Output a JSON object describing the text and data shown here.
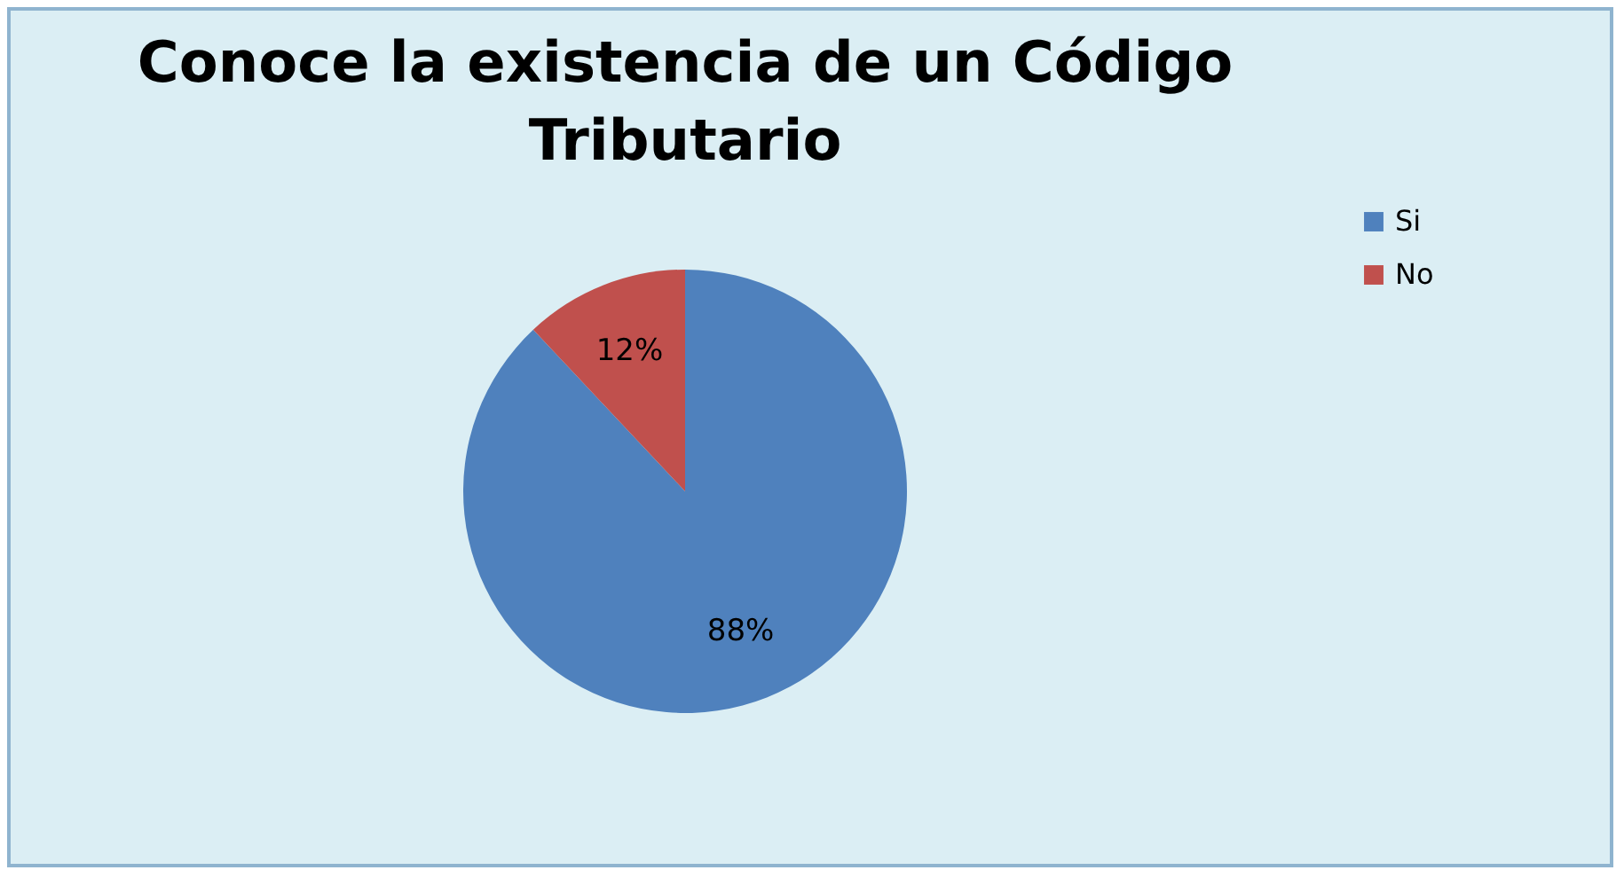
{
  "chart_data": {
    "type": "pie",
    "title": "Conoce la existencia de un Código Tributario",
    "categories": [
      "Si",
      "No"
    ],
    "values": [
      88,
      12
    ],
    "colors": [
      "#4f81bd",
      "#c0504d"
    ],
    "value_labels": [
      "88%",
      "12%"
    ],
    "legend": "right"
  }
}
